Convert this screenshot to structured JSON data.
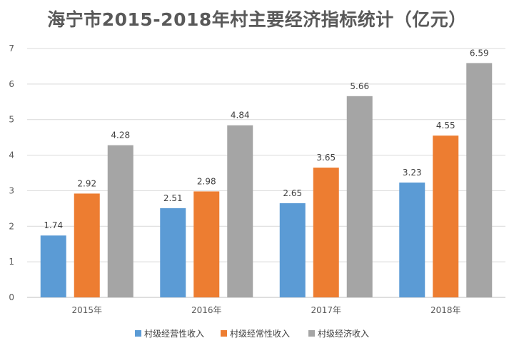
{
  "chart_data": {
    "type": "bar",
    "title": "海宁市2015-2018年村主要经济指标统计（亿元）",
    "categories": [
      "2015年",
      "2016年",
      "2017年",
      "2018年"
    ],
    "series": [
      {
        "name": "村级经营性收入",
        "values": [
          1.74,
          2.51,
          2.65,
          3.23
        ],
        "color": "#5B9BD5"
      },
      {
        "name": "村级经常性收入",
        "values": [
          2.92,
          2.98,
          3.65,
          4.55
        ],
        "color": "#ED7D31"
      },
      {
        "name": "村级经济收入",
        "values": [
          4.28,
          4.84,
          5.66,
          6.59
        ],
        "color": "#A5A5A5"
      }
    ],
    "yticks": [
      0,
      1,
      2,
      3,
      4,
      5,
      6,
      7
    ],
    "ylim": [
      0,
      7
    ],
    "xlabel": "",
    "ylabel": "",
    "grid": true,
    "legend_position": "bottom"
  }
}
